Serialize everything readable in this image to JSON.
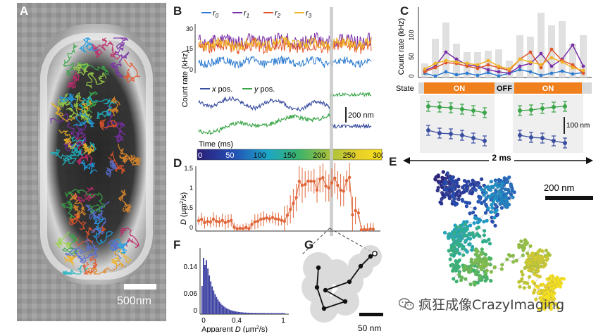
{
  "panels": {
    "a": "A",
    "b": "B",
    "c": "C",
    "d": "D",
    "e": "E",
    "f": "F",
    "g": "G"
  },
  "panel_a": {
    "scalebar": "500nm"
  },
  "panel_b": {
    "ylabel": "Count rate (kHz)",
    "legend": [
      {
        "name": "r",
        "sub": "0",
        "color": "#2c7bd0"
      },
      {
        "name": "r",
        "sub": "1",
        "color": "#7b2fa8"
      },
      {
        "name": "r",
        "sub": "2",
        "color": "#e2552a"
      },
      {
        "name": "r",
        "sub": "3",
        "color": "#f0b323"
      }
    ],
    "yticks": [
      "30",
      "15",
      "0"
    ],
    "pos_legend": [
      {
        "name": "x",
        "suffix": " pos.",
        "color": "#3a4ea0"
      },
      {
        "name": "y",
        "suffix": " pos.",
        "color": "#3aa548"
      }
    ],
    "scalebar": "200 nm",
    "time_label": "Time (ms)",
    "time_ticks": [
      "0",
      "50",
      "100",
      "150",
      "200",
      "250",
      "300"
    ]
  },
  "panel_c": {
    "ylabel": "Count rate (kHz)",
    "yticks": [
      "100",
      "50",
      "0"
    ],
    "state_label": "State",
    "states": [
      "ON",
      "OFF",
      "ON"
    ],
    "scalebar": "100 nm",
    "duration": "2 ms"
  },
  "panel_d": {
    "ylabel_main": "D",
    "ylabel_unit": " (μm",
    "ylabel_sup": "2",
    "ylabel_end": "/s)",
    "yticks": [
      "1.5",
      "1",
      "0.5",
      "0"
    ]
  },
  "panel_e": {
    "scalebar": "200 nm"
  },
  "panel_f": {
    "yticks": [
      "0.14",
      "0.06",
      "0"
    ],
    "xticks": [
      "0",
      "0.4",
      "1"
    ],
    "xlabel_pre": "Apparent ",
    "xlabel_main": "D",
    "xlabel_unit": " (μm",
    "xlabel_sup": "2",
    "xlabel_end": "/s)"
  },
  "panel_g": {
    "scalebar": "50 nm"
  },
  "watermark": "疯狂成像CrazyImaging",
  "colors": {
    "orange": "#f07f1d",
    "accent_blue": "#3a4ea0",
    "accent_green": "#3aa548",
    "gray_bar": "#e0e0e0",
    "d_orange": "#e0673a"
  }
}
